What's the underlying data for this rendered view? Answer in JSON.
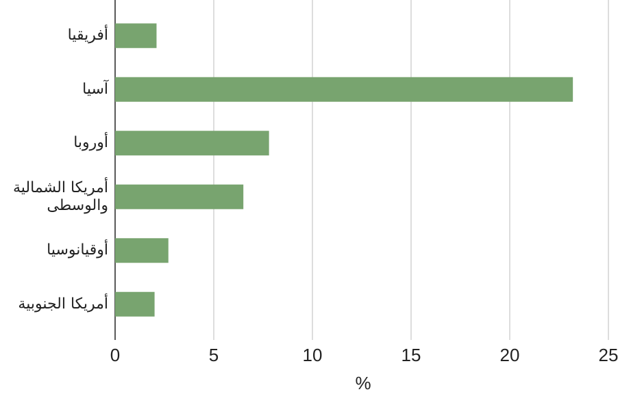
{
  "chart_data": {
    "type": "bar",
    "orientation": "horizontal",
    "categories": [
      "أفريقيا",
      "آسيا",
      "أوروبا",
      "أمريكا الشمالية والوسطى",
      "أوقيانوسيا",
      "أمريكا الجنوبية"
    ],
    "values": [
      2.1,
      23.2,
      7.8,
      6.5,
      2.7,
      2.0
    ],
    "color": "#78a46f",
    "xlabel": "%",
    "xlim": [
      0,
      25
    ],
    "xticks": [
      0,
      5,
      10,
      15,
      20,
      25
    ],
    "grid": true
  }
}
